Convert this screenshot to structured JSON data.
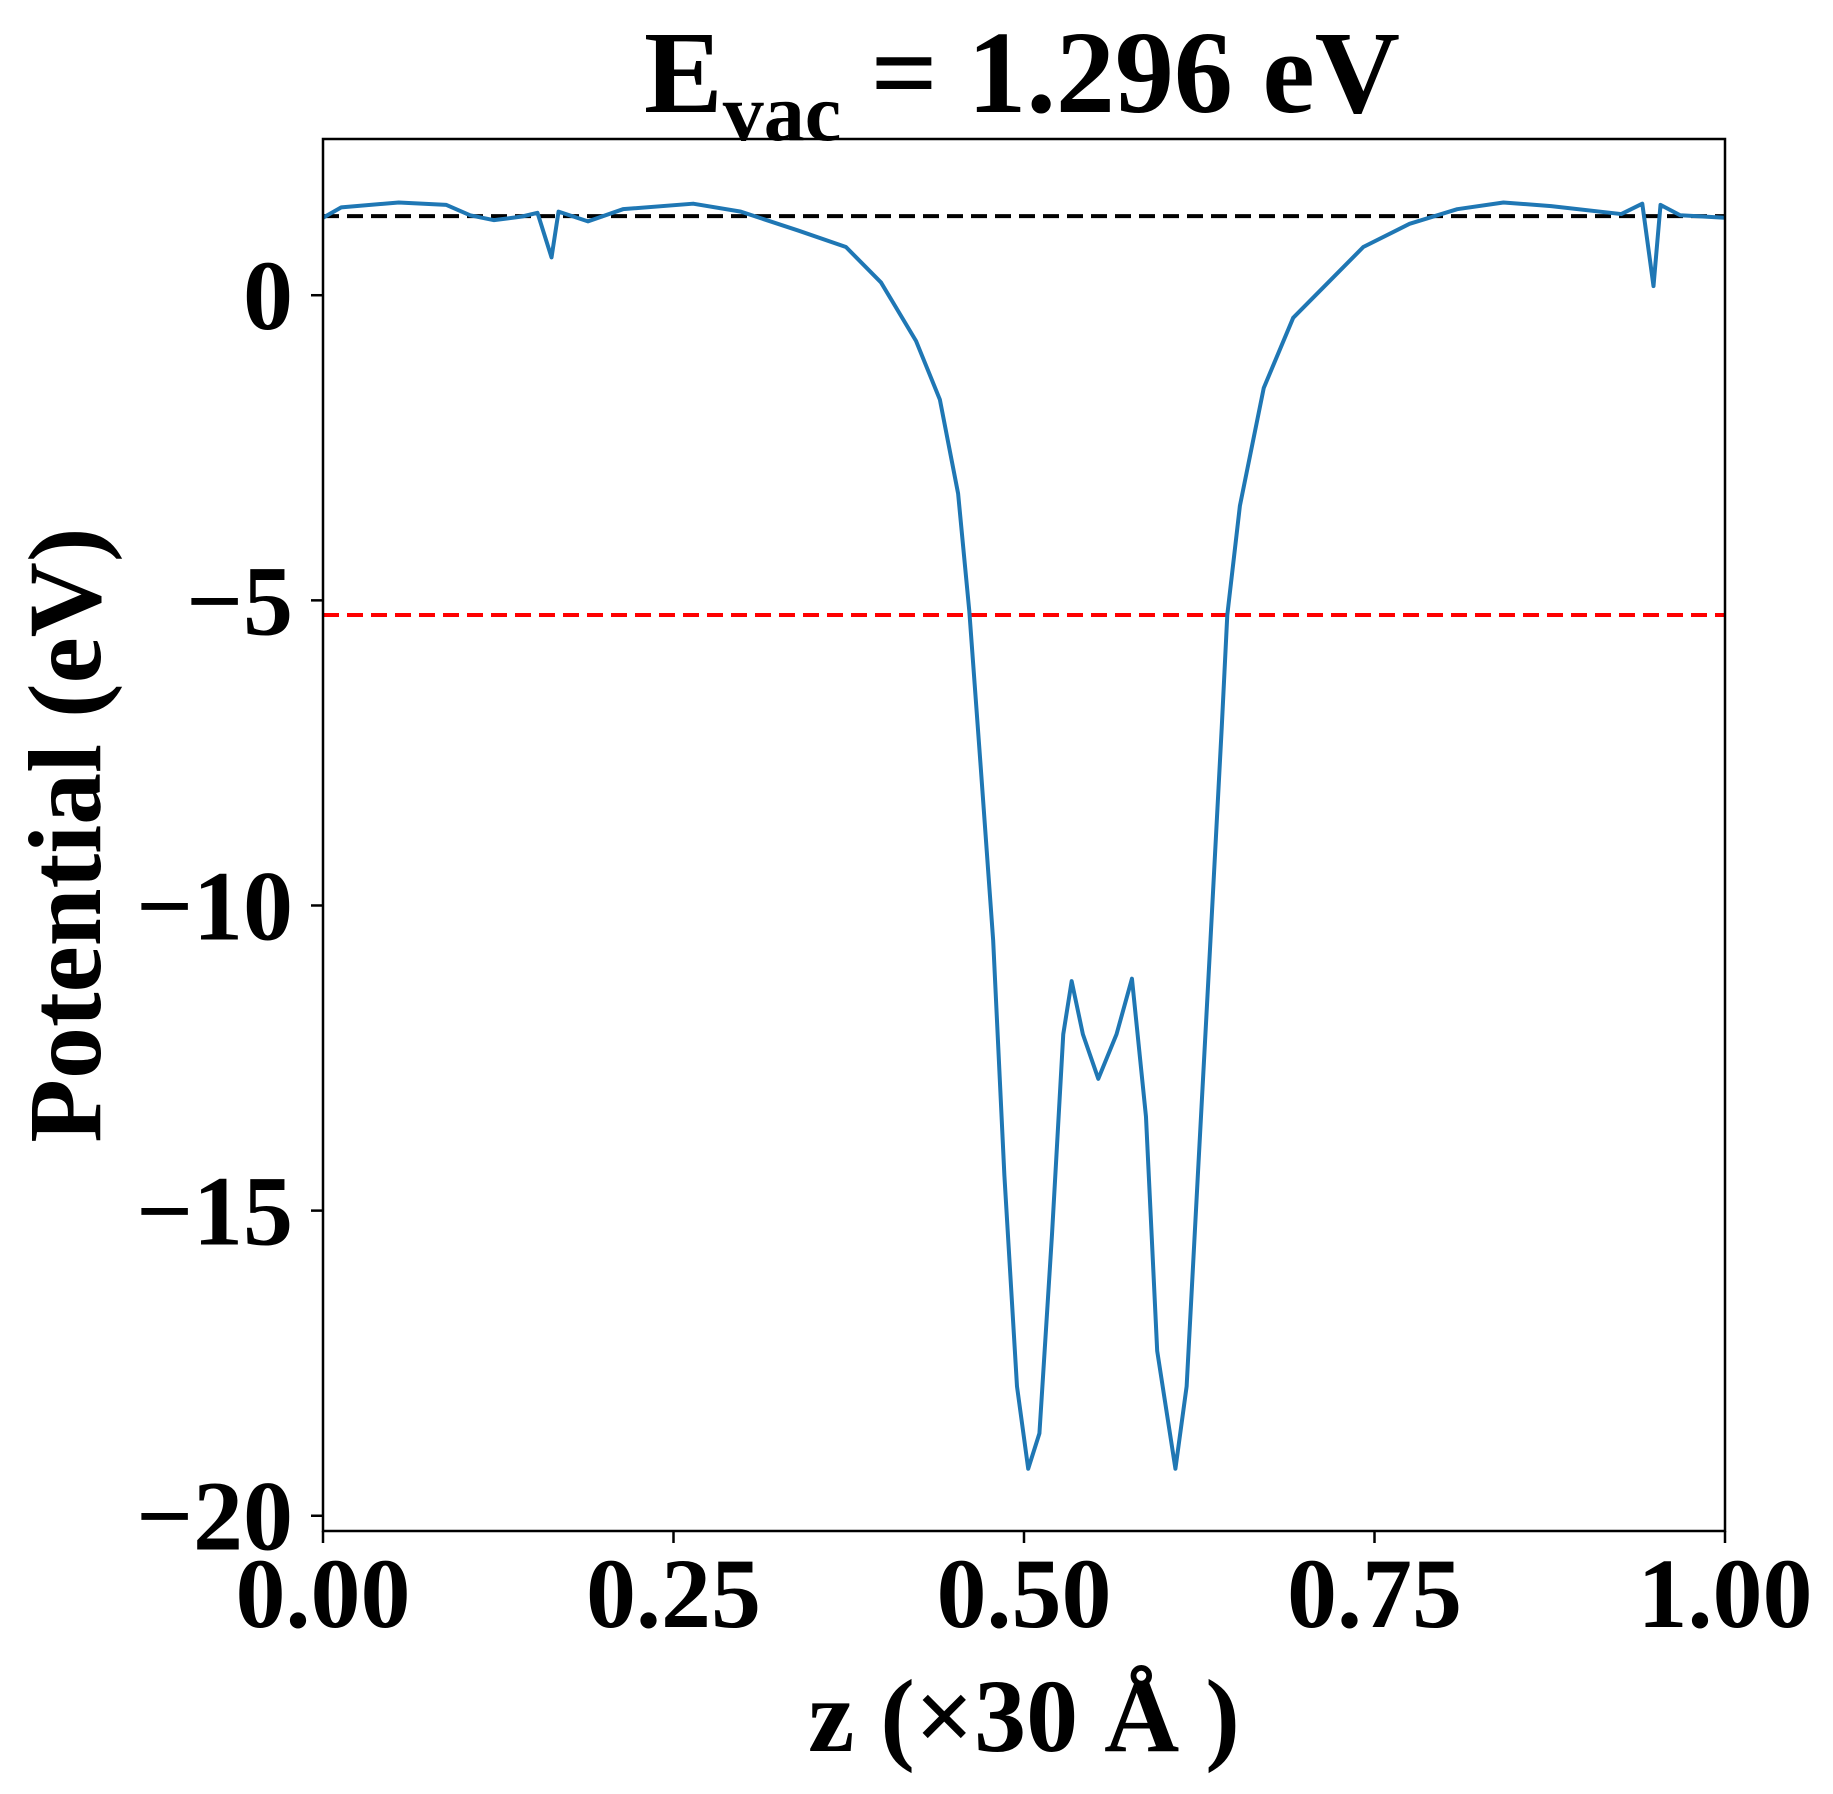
{
  "chart_data": {
    "type": "line",
    "title": {
      "main": "E",
      "subscript": "vac",
      "rest": " = 1.296 eV"
    },
    "x_label": "z (×30 Å )",
    "y_label": "Potential (eV)",
    "xlim": [
      0,
      1
    ],
    "ylim": [
      -20.25,
      2.56
    ],
    "xticks": [
      {
        "value": 0,
        "label": "0.00"
      },
      {
        "value": 0.25,
        "label": "0.25"
      },
      {
        "value": 0.5,
        "label": "0.50"
      },
      {
        "value": 0.75,
        "label": "0.75"
      },
      {
        "value": 1,
        "label": "1.00"
      }
    ],
    "yticks": [
      0,
      {
        "value": -5,
        "label": "−5"
      },
      {
        "value": -10,
        "label": "−10"
      },
      {
        "value": -15,
        "label": "−15"
      },
      {
        "value": -20,
        "label": "−20"
      }
    ],
    "grid": false,
    "hlines": [
      {
        "value": 1.296,
        "color": "#000000"
      },
      {
        "value": -5.24,
        "color": "#ff0000"
      }
    ],
    "series": [
      {
        "color": "#1f77b4",
        "x": [
          0.0,
          0.013,
          0.054,
          0.088,
          0.105,
          0.122,
          0.142,
          0.153,
          0.163,
          0.168,
          0.189,
          0.214,
          0.264,
          0.298,
          0.339,
          0.373,
          0.398,
          0.423,
          0.44,
          0.453,
          0.461,
          0.469,
          0.478,
          0.486,
          0.495,
          0.503,
          0.511,
          0.52,
          0.528,
          0.534,
          0.542,
          0.553,
          0.566,
          0.577,
          0.587,
          0.595,
          0.608,
          0.616,
          0.624,
          0.633,
          0.641,
          0.645,
          0.654,
          0.671,
          0.692,
          0.717,
          0.742,
          0.775,
          0.809,
          0.842,
          0.876,
          0.926,
          0.941,
          0.949,
          0.954,
          0.968,
          1.0
        ],
        "values": [
          1.27,
          1.44,
          1.52,
          1.48,
          1.31,
          1.23,
          1.29,
          1.35,
          0.62,
          1.37,
          1.21,
          1.41,
          1.5,
          1.37,
          1.06,
          0.79,
          0.21,
          -0.75,
          -1.71,
          -3.25,
          -5.18,
          -7.69,
          -10.57,
          -14.42,
          -17.88,
          -19.23,
          -18.65,
          -15.38,
          -12.11,
          -11.24,
          -12.11,
          -12.84,
          -12.11,
          -11.2,
          -13.46,
          -17.3,
          -19.23,
          -17.88,
          -14.42,
          -10.57,
          -7.1,
          -5.24,
          -3.45,
          -1.52,
          -0.37,
          0.21,
          0.79,
          1.17,
          1.41,
          1.52,
          1.46,
          1.33,
          1.5,
          0.15,
          1.48,
          1.31,
          1.27
        ]
      }
    ]
  }
}
